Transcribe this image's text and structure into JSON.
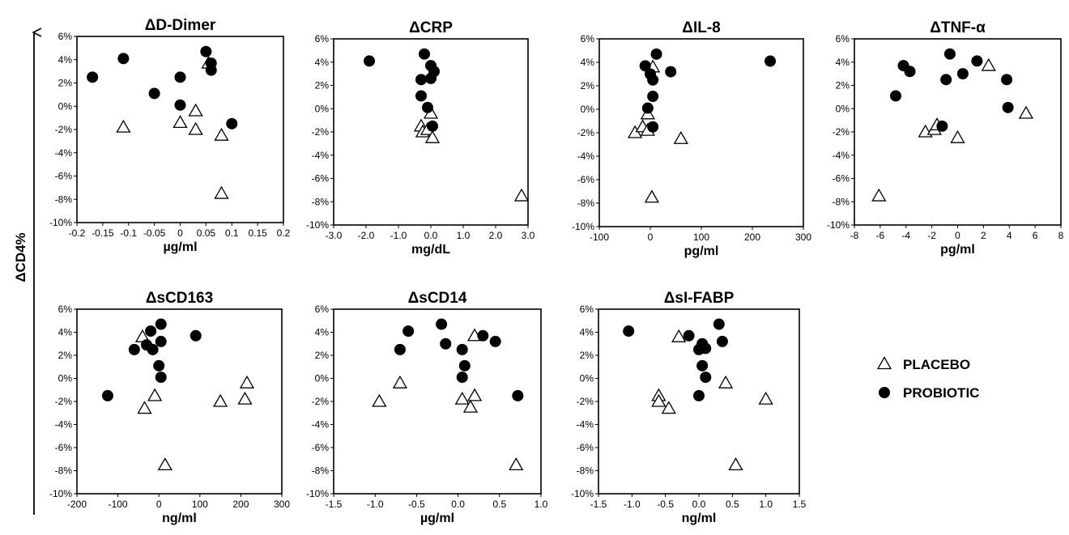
{
  "figure": {
    "y_axis_label": "ΔCD4%"
  },
  "legend": [
    {
      "label": "PLACEBO",
      "marker": "open-triangle"
    },
    {
      "label": "PROBIOTIC",
      "marker": "filled-circle"
    }
  ],
  "chart_data": [
    {
      "type": "scatter",
      "title": "ΔD-Dimer",
      "xlabel": "µg/ml",
      "xlim": [
        -0.2,
        0.2
      ],
      "xticks": [
        -0.2,
        -0.15,
        -0.1,
        -0.05,
        0,
        0.05,
        0.1,
        0.15,
        0.2
      ],
      "xtick_labels": [
        "-0.2",
        "-0.15",
        "-0.1",
        "-0.05",
        "0",
        "0.05",
        "0.1",
        "0.15",
        "0.2"
      ],
      "ylim": [
        -10,
        6
      ],
      "yticks": [
        -10,
        -8,
        -6,
        -4,
        -2,
        0,
        2,
        4,
        6
      ],
      "ytick_labels": [
        "-10%",
        "-8%",
        "-6%",
        "-4%",
        "-2%",
        "0%",
        "2%",
        "4%",
        "6%"
      ],
      "series": [
        {
          "name": "PLACEBO",
          "marker": "open-triangle",
          "points": [
            [
              -0.11,
              -1.8
            ],
            [
              0.0,
              -1.4
            ],
            [
              0.03,
              -0.4
            ],
            [
              0.03,
              -2.0
            ],
            [
              0.08,
              -2.5
            ],
            [
              0.08,
              -7.5
            ],
            [
              0.055,
              3.7
            ]
          ]
        },
        {
          "name": "PROBIOTIC",
          "marker": "filled-circle",
          "points": [
            [
              -0.17,
              2.5
            ],
            [
              -0.11,
              4.1
            ],
            [
              -0.05,
              1.1
            ],
            [
              0.0,
              2.5
            ],
            [
              0.0,
              0.1
            ],
            [
              0.05,
              4.7
            ],
            [
              0.06,
              3.7
            ],
            [
              0.06,
              3.1
            ],
            [
              0.1,
              -1.5
            ]
          ]
        }
      ]
    },
    {
      "type": "scatter",
      "title": "ΔCRP",
      "xlabel": "mg/dL",
      "xlim": [
        -3,
        3
      ],
      "xticks": [
        -3,
        -2,
        -1,
        0,
        1,
        2,
        3
      ],
      "xtick_labels": [
        "-3.0",
        "-2.0",
        "-1.0",
        "0.0",
        "1.0",
        "2.0",
        "3.0"
      ],
      "ylim": [
        -10,
        6
      ],
      "yticks": [
        -10,
        -8,
        -6,
        -4,
        -2,
        0,
        2,
        4,
        6
      ],
      "ytick_labels": [
        "-10%",
        "-8%",
        "-6%",
        "-4%",
        "-2%",
        "0%",
        "2%",
        "4%",
        "6%"
      ],
      "series": [
        {
          "name": "PLACEBO",
          "marker": "open-triangle",
          "points": [
            [
              -0.3,
              -1.5
            ],
            [
              -0.25,
              -2.0
            ],
            [
              -0.1,
              -1.8
            ],
            [
              0.0,
              -0.4
            ],
            [
              0.05,
              -2.5
            ],
            [
              2.8,
              -7.5
            ]
          ]
        },
        {
          "name": "PROBIOTIC",
          "marker": "filled-circle",
          "points": [
            [
              -1.9,
              4.1
            ],
            [
              -0.2,
              4.7
            ],
            [
              0.0,
              3.7
            ],
            [
              0.1,
              3.2
            ],
            [
              -0.3,
              2.5
            ],
            [
              0.0,
              2.6
            ],
            [
              -0.3,
              1.1
            ],
            [
              -0.1,
              0.1
            ],
            [
              0.05,
              -1.5
            ]
          ]
        }
      ]
    },
    {
      "type": "scatter",
      "title": "ΔIL-8",
      "xlabel": "pg/ml",
      "xlim": [
        -100,
        300
      ],
      "xticks": [
        -100,
        0,
        100,
        200,
        300
      ],
      "xtick_labels": [
        "-100",
        "0",
        "100",
        "200",
        "300"
      ],
      "ylim": [
        -10,
        6
      ],
      "yticks": [
        -10,
        -8,
        -6,
        -4,
        -2,
        0,
        2,
        4,
        6
      ],
      "ytick_labels": [
        "-10%",
        "-8%",
        "-6%",
        "-4%",
        "-2%",
        "0%",
        "2%",
        "4%",
        "6%"
      ],
      "series": [
        {
          "name": "PLACEBO",
          "marker": "open-triangle",
          "points": [
            [
              -30,
              -2.0
            ],
            [
              -15,
              -1.5
            ],
            [
              -5,
              -1.8
            ],
            [
              -5,
              -0.4
            ],
            [
              5,
              3.6
            ],
            [
              60,
              -2.5
            ],
            [
              3,
              -7.5
            ]
          ]
        },
        {
          "name": "PROBIOTIC",
          "marker": "filled-circle",
          "points": [
            [
              -10,
              3.7
            ],
            [
              12,
              4.7
            ],
            [
              0,
              3.0
            ],
            [
              5,
              2.5
            ],
            [
              40,
              3.2
            ],
            [
              5,
              1.1
            ],
            [
              -5,
              0.1
            ],
            [
              5,
              -1.5
            ],
            [
              235,
              4.1
            ]
          ]
        }
      ]
    },
    {
      "type": "scatter",
      "title": "ΔTNF-α",
      "xlabel": "pg/ml",
      "xlim": [
        -8,
        8
      ],
      "xticks": [
        -8,
        -6,
        -4,
        -2,
        0,
        2,
        4,
        6,
        8
      ],
      "xtick_labels": [
        "-8",
        "-6",
        "-4",
        "-2",
        "0",
        "2",
        "4",
        "6",
        "8"
      ],
      "ylim": [
        -10,
        6
      ],
      "yticks": [
        -10,
        -8,
        -6,
        -4,
        -2,
        0,
        2,
        4,
        6
      ],
      "ytick_labels": [
        "-10%",
        "-8%",
        "-6%",
        "-4%",
        "-2%",
        "0%",
        "2%",
        "4%",
        "6%"
      ],
      "series": [
        {
          "name": "PLACEBO",
          "marker": "open-triangle",
          "points": [
            [
              -6.1,
              -7.5
            ],
            [
              -2.5,
              -2.0
            ],
            [
              -1.8,
              -1.8
            ],
            [
              -1.6,
              -1.4
            ],
            [
              0,
              -2.5
            ],
            [
              2.4,
              3.7
            ],
            [
              5.3,
              -0.4
            ]
          ]
        },
        {
          "name": "PROBIOTIC",
          "marker": "filled-circle",
          "points": [
            [
              -4.8,
              1.1
            ],
            [
              -4.2,
              3.7
            ],
            [
              -3.7,
              3.2
            ],
            [
              -1.2,
              -1.5
            ],
            [
              -0.9,
              2.5
            ],
            [
              -0.6,
              4.7
            ],
            [
              0.4,
              3.0
            ],
            [
              1.5,
              4.1
            ],
            [
              3.8,
              2.5
            ],
            [
              3.9,
              0.1
            ]
          ]
        }
      ]
    },
    {
      "type": "scatter",
      "title": "ΔsCD163",
      "xlabel": "ng/ml",
      "xlim": [
        -200,
        300
      ],
      "xticks": [
        -200,
        -100,
        0,
        100,
        200,
        300
      ],
      "xtick_labels": [
        "-200",
        "-100",
        "0",
        "100",
        "200",
        "300"
      ],
      "ylim": [
        -10,
        6
      ],
      "yticks": [
        -10,
        -8,
        -6,
        -4,
        -2,
        0,
        2,
        4,
        6
      ],
      "ytick_labels": [
        "-10%",
        "-8%",
        "-6%",
        "-4%",
        "-2%",
        "0%",
        "2%",
        "4%",
        "6%"
      ],
      "series": [
        {
          "name": "PLACEBO",
          "marker": "open-triangle",
          "points": [
            [
              -40,
              3.6
            ],
            [
              -35,
              -2.6
            ],
            [
              -10,
              -1.5
            ],
            [
              15,
              -7.5
            ],
            [
              150,
              -2.0
            ],
            [
              210,
              -1.8
            ],
            [
              215,
              -0.4
            ]
          ]
        },
        {
          "name": "PROBIOTIC",
          "marker": "filled-circle",
          "points": [
            [
              -125,
              -1.5
            ],
            [
              -60,
              2.5
            ],
            [
              -30,
              2.9
            ],
            [
              -20,
              4.1
            ],
            [
              -15,
              2.5
            ],
            [
              5,
              4.7
            ],
            [
              5,
              3.2
            ],
            [
              0,
              1.1
            ],
            [
              5,
              0.1
            ],
            [
              90,
              3.7
            ]
          ]
        }
      ]
    },
    {
      "type": "scatter",
      "title": "ΔsCD14",
      "xlabel": "µg/ml",
      "xlim": [
        -1.5,
        1.0
      ],
      "xticks": [
        -1.5,
        -1.0,
        -0.5,
        0.0,
        0.5,
        1.0
      ],
      "xtick_labels": [
        "-1.5",
        "-1.0",
        "-0.5",
        "0.0",
        "0.5",
        "1.0"
      ],
      "ylim": [
        -10,
        6
      ],
      "yticks": [
        -10,
        -8,
        -6,
        -4,
        -2,
        0,
        2,
        4,
        6
      ],
      "ytick_labels": [
        "-10%",
        "-8%",
        "-6%",
        "-4%",
        "-2%",
        "0%",
        "2%",
        "4%",
        "6%"
      ],
      "series": [
        {
          "name": "PLACEBO",
          "marker": "open-triangle",
          "points": [
            [
              -0.95,
              -2.0
            ],
            [
              -0.7,
              -0.4
            ],
            [
              0.05,
              -1.8
            ],
            [
              0.15,
              -2.5
            ],
            [
              0.2,
              -1.5
            ],
            [
              0.2,
              3.7
            ],
            [
              0.7,
              -7.5
            ]
          ]
        },
        {
          "name": "PROBIOTIC",
          "marker": "filled-circle",
          "points": [
            [
              -0.7,
              2.5
            ],
            [
              -0.6,
              4.1
            ],
            [
              -0.2,
              4.7
            ],
            [
              -0.15,
              3.0
            ],
            [
              0.05,
              2.5
            ],
            [
              0.05,
              0.1
            ],
            [
              0.08,
              1.1
            ],
            [
              0.3,
              3.7
            ],
            [
              0.45,
              3.2
            ],
            [
              0.72,
              -1.5
            ]
          ]
        }
      ]
    },
    {
      "type": "scatter",
      "title": "ΔsI-FABP",
      "xlabel": "ng/ml",
      "xlim": [
        -1.5,
        1.5
      ],
      "xticks": [
        -1.5,
        -1.0,
        -0.5,
        0.0,
        0.5,
        1.0,
        1.5
      ],
      "xtick_labels": [
        "-1.5",
        "-1.0",
        "-0.5",
        "0.0",
        "0.5",
        "1.0",
        "1.5"
      ],
      "ylim": [
        -10,
        6
      ],
      "yticks": [
        -10,
        -8,
        -6,
        -4,
        -2,
        0,
        2,
        4,
        6
      ],
      "ytick_labels": [
        "-10%",
        "-8%",
        "-6%",
        "-4%",
        "-2%",
        "0%",
        "2%",
        "4%",
        "6%"
      ],
      "series": [
        {
          "name": "PLACEBO",
          "marker": "open-triangle",
          "points": [
            [
              -0.3,
              3.6
            ],
            [
              -0.6,
              -1.5
            ],
            [
              -0.6,
              -2.0
            ],
            [
              -0.45,
              -2.6
            ],
            [
              0.4,
              -0.4
            ],
            [
              1.0,
              -1.8
            ],
            [
              0.55,
              -7.5
            ]
          ]
        },
        {
          "name": "PROBIOTIC",
          "marker": "filled-circle",
          "points": [
            [
              -1.05,
              4.1
            ],
            [
              -0.15,
              3.7
            ],
            [
              0.0,
              2.5
            ],
            [
              0.05,
              3.0
            ],
            [
              0.05,
              1.1
            ],
            [
              0.1,
              2.6
            ],
            [
              0.1,
              0.1
            ],
            [
              0.3,
              4.7
            ],
            [
              0.35,
              3.2
            ],
            [
              0.0,
              -1.5
            ]
          ]
        }
      ]
    }
  ]
}
